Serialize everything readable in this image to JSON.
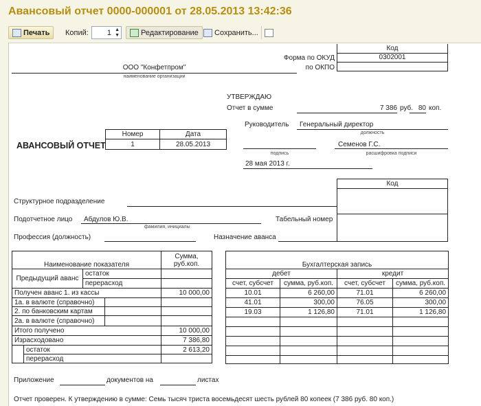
{
  "window": {
    "title": "Авансовый отчет 0000-000001 от 28.05.2013 13:42:36"
  },
  "toolbar": {
    "print": "Печать",
    "copies_label": "Копий:",
    "copies_value": "1",
    "edit": "Редактирование",
    "save": "Сохранить..."
  },
  "form": {
    "code_header": "Код",
    "okud_label": "Форма по ОКУД",
    "okud_value": "0302001",
    "okpo_label": "по ОКПО",
    "org_name": "ООО \"Конфетпром\"",
    "org_caption": "наименование организации",
    "approve": "УТВЕРЖДАЮ",
    "sum_label": "Отчет в сумме",
    "sum_rub": "7 386",
    "rub": "руб.",
    "sum_kop": "80",
    "kop": "коп.",
    "head_label": "Руководитель",
    "head_position": "Генеральный директор",
    "position_caption": "должность",
    "head_name": "Семенов Г.С.",
    "signature_caption": "подпись",
    "decode_caption": "расшифровка подписи",
    "approve_date": "28 мая 2013 г.",
    "doc_title": "АВАНСОВЫЙ ОТЧЕТ",
    "number_header": "Номер",
    "date_header": "Дата",
    "number": "1",
    "date": "28.05.2013",
    "code2_header": "Код",
    "dept_label": "Структурное подразделение",
    "person_label": "Подотчетное лицо",
    "person_name": "Абдулов Ю.В.",
    "person_caption": "фамилия, инициалы",
    "tab_number_label": "Табельный номер",
    "profession_label": "Профессия (должность)",
    "purpose_label": "Назначение аванса"
  },
  "advance_table": {
    "h_name": "Наименование показателя",
    "h_sum": "Сумма, руб.коп.",
    "prev": "Предыдущий аванс",
    "ostatok": "остаток",
    "pererashod": "перерасход",
    "received": "Получен аванс 1. из кассы",
    "received_sum": "10 000,00",
    "r1a": "1а. в валюте (справочно)",
    "r2": "2. по банковским картам",
    "r2a": "2а. в валюте (справочно)",
    "total": "Итого получено",
    "total_sum": "10 000,00",
    "spent": "Израсходовано",
    "spent_sum": "7 386,80",
    "ostatok2": "остаток",
    "ostatok2_sum": "2 613,20",
    "pererashod2": "перерасход"
  },
  "accounting_table": {
    "header": "Бухгалтерская запись",
    "debit": "дебет",
    "credit": "кредит",
    "cols": [
      "счет, субсчет",
      "сумма, руб.коп.",
      "счет, субсчет",
      "сумма, руб.коп."
    ],
    "rows": [
      [
        "10.01",
        "6 260,00",
        "71.01",
        "6 260,00"
      ],
      [
        "41.01",
        "300,00",
        "76.05",
        "300,00"
      ],
      [
        "19.03",
        "1 126,80",
        "71.01",
        "1 126,80"
      ]
    ]
  },
  "footer": {
    "attach": "Приложение",
    "docs_on": "документов на",
    "sheets": "листах",
    "checked": "Отчет проверен. К утверждению в сумме:  Семь тысяч триста восемьдесят шесть рублей 80 копеек (7 386 руб. 80 коп.)"
  }
}
